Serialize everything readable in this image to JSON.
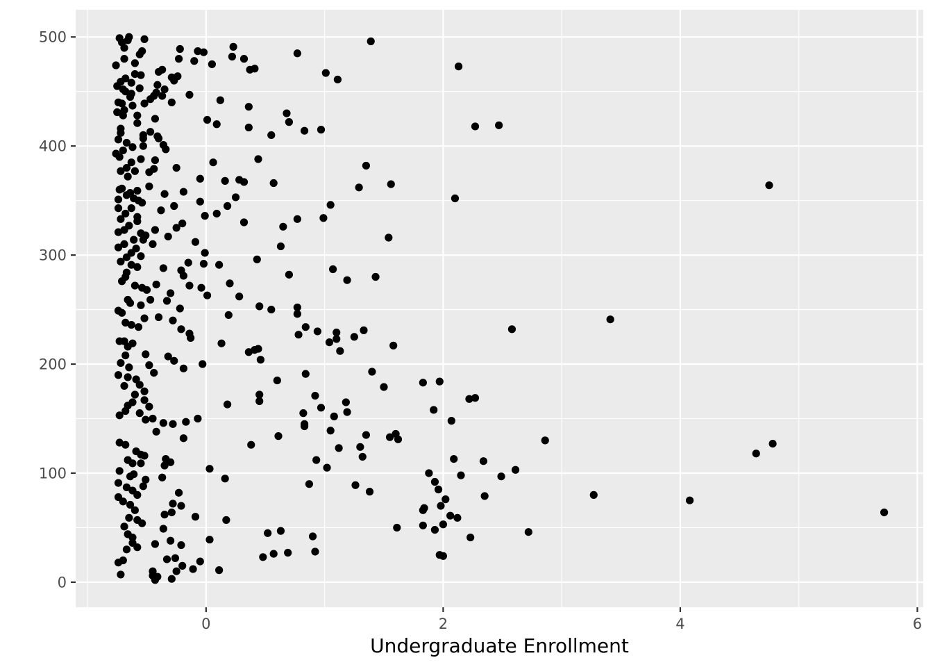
{
  "chart_data": {
    "type": "scatter",
    "title": "",
    "xlabel": "Undergraduate Enrollment",
    "ylabel": "",
    "xlim": [
      -1.1,
      6.05
    ],
    "ylim": [
      -23,
      525
    ],
    "x_ticks": [
      0,
      2,
      4,
      6
    ],
    "x_minor_ticks": [
      -1,
      1,
      3,
      5
    ],
    "y_ticks": [
      0,
      100,
      200,
      300,
      400,
      500
    ],
    "y_minor_ticks": [
      50,
      150,
      250,
      350,
      450
    ],
    "x_tick_labels": [
      "0",
      "2",
      "4",
      "6"
    ],
    "y_tick_labels": [
      "0",
      "100",
      "200",
      "300",
      "400",
      "500"
    ],
    "grid": true,
    "legend": "none",
    "colors": {
      "panel_background": "#EBEBEB",
      "grid_major": "#FFFFFF",
      "point": "#000000",
      "tick_label": "#4D4D4D"
    },
    "points": [
      [
        -0.76,
        474
      ],
      [
        -0.73,
        499
      ],
      [
        -0.71,
        495
      ],
      [
        -0.69,
        490
      ],
      [
        -0.66,
        497
      ],
      [
        -0.65,
        500
      ],
      [
        -0.52,
        498
      ],
      [
        -0.69,
        480
      ],
      [
        -0.6,
        476
      ],
      [
        -0.56,
        484
      ],
      [
        -0.54,
        487
      ],
      [
        -0.6,
        466
      ],
      [
        -0.55,
        465
      ],
      [
        -0.68,
        462
      ],
      [
        -0.72,
        459
      ],
      [
        -0.63,
        458
      ],
      [
        -0.75,
        455
      ],
      [
        -0.7,
        452
      ],
      [
        -0.68,
        450
      ],
      [
        -0.63,
        448
      ],
      [
        -0.56,
        453
      ],
      [
        -0.71,
        439
      ],
      [
        -0.74,
        440
      ],
      [
        -0.64,
        445
      ],
      [
        -0.62,
        437
      ],
      [
        -0.69,
        433
      ],
      [
        -0.75,
        431
      ],
      [
        -0.7,
        428
      ],
      [
        -0.58,
        428
      ],
      [
        -0.52,
        439
      ],
      [
        -0.47,
        443
      ],
      [
        -0.44,
        446
      ],
      [
        -0.42,
        449
      ],
      [
        -0.37,
        446
      ],
      [
        -0.35,
        452
      ],
      [
        -0.41,
        456
      ],
      [
        -0.29,
        463
      ],
      [
        -0.24,
        464
      ],
      [
        -0.27,
        460
      ],
      [
        -0.4,
        468
      ],
      [
        -0.37,
        470
      ],
      [
        -0.23,
        480
      ],
      [
        -0.22,
        489
      ],
      [
        -0.07,
        487
      ],
      [
        -0.02,
        486
      ],
      [
        -0.1,
        478
      ],
      [
        0.05,
        475
      ],
      [
        0.23,
        491
      ],
      [
        0.22,
        482
      ],
      [
        0.32,
        480
      ],
      [
        0.37,
        470
      ],
      [
        0.41,
        471
      ],
      [
        0.77,
        485
      ],
      [
        1.01,
        467
      ],
      [
        1.11,
        461
      ],
      [
        1.39,
        496
      ],
      [
        2.13,
        473
      ],
      [
        -0.29,
        440
      ],
      [
        -0.14,
        447
      ],
      [
        0.12,
        442
      ],
      [
        0.36,
        436
      ],
      [
        0.68,
        430
      ],
      [
        0.01,
        424
      ],
      [
        0.09,
        420
      ],
      [
        0.36,
        417
      ],
      [
        0.7,
        422
      ],
      [
        0.83,
        414
      ],
      [
        0.97,
        415
      ],
      [
        0.55,
        410
      ],
      [
        2.27,
        418
      ],
      [
        2.47,
        419
      ],
      [
        -0.74,
        406
      ],
      [
        -0.76,
        393
      ],
      [
        -0.73,
        390
      ],
      [
        -0.7,
        396
      ],
      [
        -0.67,
        403
      ],
      [
        -0.62,
        399
      ],
      [
        -0.72,
        412
      ],
      [
        -0.72,
        416
      ],
      [
        -0.58,
        421
      ],
      [
        -0.53,
        410
      ],
      [
        -0.53,
        407
      ],
      [
        -0.47,
        413
      ],
      [
        -0.43,
        425
      ],
      [
        -0.41,
        409
      ],
      [
        -0.4,
        407
      ],
      [
        -0.36,
        401
      ],
      [
        -0.34,
        397
      ],
      [
        -0.53,
        400
      ],
      [
        -0.55,
        388
      ],
      [
        -0.63,
        385
      ],
      [
        -0.67,
        380
      ],
      [
        -0.72,
        377
      ],
      [
        -0.66,
        372
      ],
      [
        -0.6,
        377
      ],
      [
        -0.48,
        376
      ],
      [
        -0.44,
        379
      ],
      [
        -0.43,
        387
      ],
      [
        -0.25,
        380
      ],
      [
        0.06,
        385
      ],
      [
        0.44,
        388
      ],
      [
        1.35,
        382
      ],
      [
        -0.73,
        360
      ],
      [
        -0.71,
        361
      ],
      [
        -0.67,
        355
      ],
      [
        -0.61,
        352
      ],
      [
        -0.57,
        350
      ],
      [
        -0.58,
        359
      ],
      [
        -0.64,
        357
      ],
      [
        -0.74,
        351
      ],
      [
        -0.54,
        348
      ],
      [
        -0.48,
        363
      ],
      [
        -0.35,
        356
      ],
      [
        -0.19,
        358
      ],
      [
        -0.05,
        370
      ],
      [
        0.16,
        368
      ],
      [
        0.28,
        369
      ],
      [
        0.32,
        367
      ],
      [
        0.57,
        366
      ],
      [
        1.56,
        365
      ],
      [
        1.29,
        362
      ],
      [
        2.1,
        352
      ],
      [
        4.75,
        364
      ],
      [
        -0.74,
        343
      ],
      [
        -0.68,
        338
      ],
      [
        -0.63,
        343
      ],
      [
        -0.72,
        333
      ],
      [
        -0.58,
        335
      ],
      [
        -0.65,
        327
      ],
      [
        -0.58,
        331
      ],
      [
        -0.69,
        323
      ],
      [
        -0.74,
        321
      ],
      [
        -0.61,
        314
      ],
      [
        -0.55,
        320
      ],
      [
        -0.51,
        318
      ],
      [
        -0.53,
        314
      ],
      [
        -0.45,
        310
      ],
      [
        -0.43,
        323
      ],
      [
        -0.38,
        341
      ],
      [
        -0.27,
        345
      ],
      [
        -0.05,
        349
      ],
      [
        -0.01,
        336
      ],
      [
        0.09,
        338
      ],
      [
        0.18,
        345
      ],
      [
        0.25,
        353
      ],
      [
        -0.32,
        317
      ],
      [
        -0.25,
        325
      ],
      [
        -0.2,
        329
      ],
      [
        -0.09,
        312
      ],
      [
        0.32,
        330
      ],
      [
        0.65,
        326
      ],
      [
        0.77,
        333
      ],
      [
        0.99,
        334
      ],
      [
        1.05,
        346
      ],
      [
        1.54,
        316
      ],
      [
        -0.74,
        307
      ],
      [
        -0.69,
        310
      ],
      [
        -0.72,
        294
      ],
      [
        -0.67,
        298
      ],
      [
        -0.63,
        302
      ],
      [
        -0.59,
        306
      ],
      [
        -0.55,
        299
      ],
      [
        -0.58,
        289
      ],
      [
        -0.63,
        291
      ],
      [
        -0.67,
        284
      ],
      [
        -0.71,
        276
      ],
      [
        -0.68,
        280
      ],
      [
        -0.6,
        272
      ],
      [
        -0.54,
        270
      ],
      [
        -0.5,
        268
      ],
      [
        -0.47,
        259
      ],
      [
        -0.42,
        273
      ],
      [
        -0.36,
        288
      ],
      [
        -0.3,
        265
      ],
      [
        -0.21,
        286
      ],
      [
        -0.19,
        281
      ],
      [
        -0.15,
        293
      ],
      [
        -0.01,
        302
      ],
      [
        -0.02,
        292
      ],
      [
        0.11,
        291
      ],
      [
        -0.14,
        272
      ],
      [
        -0.04,
        270
      ],
      [
        0.01,
        263
      ],
      [
        0.2,
        274
      ],
      [
        0.28,
        262
      ],
      [
        0.43,
        296
      ],
      [
        0.63,
        308
      ],
      [
        0.7,
        282
      ],
      [
        1.07,
        287
      ],
      [
        1.19,
        277
      ],
      [
        1.43,
        280
      ],
      [
        -0.74,
        249
      ],
      [
        -0.71,
        247
      ],
      [
        -0.66,
        259
      ],
      [
        -0.64,
        256
      ],
      [
        -0.68,
        238
      ],
      [
        -0.63,
        236
      ],
      [
        -0.57,
        234
      ],
      [
        -0.52,
        242
      ],
      [
        -0.55,
        254
      ],
      [
        -0.4,
        243
      ],
      [
        -0.33,
        258
      ],
      [
        -0.28,
        240
      ],
      [
        -0.22,
        251
      ],
      [
        -0.21,
        232
      ],
      [
        -0.14,
        228
      ],
      [
        -0.13,
        224
      ],
      [
        0.19,
        245
      ],
      [
        0.45,
        253
      ],
      [
        0.55,
        250
      ],
      [
        0.77,
        252
      ],
      [
        0.77,
        246
      ],
      [
        0.84,
        234
      ],
      [
        0.94,
        230
      ],
      [
        0.78,
        227
      ],
      [
        1.04,
        220
      ],
      [
        1.1,
        229
      ],
      [
        1.1,
        223
      ],
      [
        1.13,
        212
      ],
      [
        1.25,
        225
      ],
      [
        1.33,
        231
      ],
      [
        1.58,
        217
      ],
      [
        2.58,
        232
      ],
      [
        3.41,
        241
      ],
      [
        -0.73,
        221
      ],
      [
        -0.69,
        221
      ],
      [
        -0.66,
        216
      ],
      [
        -0.62,
        219
      ],
      [
        -0.68,
        208
      ],
      [
        -0.72,
        201
      ],
      [
        -0.65,
        197
      ],
      [
        -0.74,
        190
      ],
      [
        -0.69,
        180
      ],
      [
        -0.66,
        188
      ],
      [
        -0.59,
        186
      ],
      [
        -0.56,
        181
      ],
      [
        -0.52,
        175
      ],
      [
        -0.51,
        209
      ],
      [
        -0.48,
        199
      ],
      [
        -0.44,
        192
      ],
      [
        -0.32,
        207
      ],
      [
        -0.27,
        203
      ],
      [
        -0.19,
        196
      ],
      [
        -0.03,
        200
      ],
      [
        0.13,
        219
      ],
      [
        0.36,
        211
      ],
      [
        0.41,
        213
      ],
      [
        0.44,
        214
      ],
      [
        0.46,
        204
      ],
      [
        0.6,
        185
      ],
      [
        0.84,
        191
      ],
      [
        1.4,
        193
      ],
      [
        1.5,
        179
      ],
      [
        1.83,
        183
      ],
      [
        1.97,
        184
      ],
      [
        -0.73,
        153
      ],
      [
        -0.68,
        157
      ],
      [
        -0.66,
        162
      ],
      [
        -0.62,
        165
      ],
      [
        -0.6,
        172
      ],
      [
        -0.56,
        155
      ],
      [
        -0.52,
        167
      ],
      [
        -0.48,
        161
      ],
      [
        -0.51,
        149
      ],
      [
        -0.45,
        150
      ],
      [
        -0.42,
        138
      ],
      [
        -0.36,
        146
      ],
      [
        -0.28,
        145
      ],
      [
        -0.17,
        147
      ],
      [
        -0.07,
        150
      ],
      [
        0.18,
        163
      ],
      [
        0.45,
        166
      ],
      [
        0.45,
        172
      ],
      [
        0.82,
        155
      ],
      [
        0.83,
        143
      ],
      [
        0.83,
        145
      ],
      [
        0.92,
        171
      ],
      [
        0.97,
        160
      ],
      [
        1.05,
        139
      ],
      [
        1.08,
        152
      ],
      [
        1.18,
        165
      ],
      [
        1.19,
        156
      ],
      [
        1.35,
        135
      ],
      [
        1.55,
        133
      ],
      [
        1.6,
        136
      ],
      [
        1.62,
        131
      ],
      [
        1.92,
        158
      ],
      [
        2.07,
        148
      ],
      [
        2.22,
        168
      ],
      [
        2.27,
        169
      ],
      [
        -0.73,
        128
      ],
      [
        -0.68,
        126
      ],
      [
        -0.66,
        112
      ],
      [
        -0.62,
        109
      ],
      [
        -0.59,
        120
      ],
      [
        -0.55,
        117
      ],
      [
        -0.52,
        116
      ],
      [
        -0.55,
        109
      ],
      [
        -0.61,
        99
      ],
      [
        -0.64,
        97
      ],
      [
        -0.73,
        102
      ],
      [
        -0.74,
        91
      ],
      [
        -0.67,
        87
      ],
      [
        -0.62,
        84
      ],
      [
        -0.58,
        80
      ],
      [
        -0.53,
        88
      ],
      [
        -0.51,
        94
      ],
      [
        -0.37,
        96
      ],
      [
        -0.35,
        107
      ],
      [
        -0.3,
        110
      ],
      [
        -0.34,
        113
      ],
      [
        -0.19,
        132
      ],
      [
        0.03,
        104
      ],
      [
        0.16,
        95
      ],
      [
        0.38,
        126
      ],
      [
        0.61,
        134
      ],
      [
        0.87,
        90
      ],
      [
        0.93,
        112
      ],
      [
        1.02,
        105
      ],
      [
        1.12,
        123
      ],
      [
        1.26,
        89
      ],
      [
        1.3,
        124
      ],
      [
        1.32,
        115
      ],
      [
        1.38,
        83
      ],
      [
        1.88,
        100
      ],
      [
        1.93,
        92
      ],
      [
        1.96,
        85
      ],
      [
        2.02,
        76
      ],
      [
        2.09,
        113
      ],
      [
        2.15,
        98
      ],
      [
        2.34,
        111
      ],
      [
        2.35,
        79
      ],
      [
        2.49,
        97
      ],
      [
        2.61,
        103
      ],
      [
        2.86,
        130
      ],
      [
        3.27,
        80
      ],
      [
        4.08,
        75
      ],
      [
        4.64,
        118
      ],
      [
        4.78,
        127
      ],
      [
        5.72,
        64
      ],
      [
        -0.74,
        78
      ],
      [
        -0.7,
        74
      ],
      [
        -0.64,
        71
      ],
      [
        -0.6,
        66
      ],
      [
        -0.65,
        59
      ],
      [
        -0.58,
        57
      ],
      [
        -0.54,
        54
      ],
      [
        -0.66,
        44
      ],
      [
        -0.62,
        41
      ],
      [
        -0.69,
        51
      ],
      [
        -0.62,
        36
      ],
      [
        -0.58,
        32
      ],
      [
        -0.67,
        30
      ],
      [
        -0.7,
        20
      ],
      [
        -0.74,
        18
      ],
      [
        -0.72,
        7
      ],
      [
        -0.45,
        6
      ],
      [
        -0.43,
        2
      ],
      [
        -0.41,
        5
      ],
      [
        -0.45,
        10
      ],
      [
        -0.29,
        3
      ],
      [
        -0.25,
        10
      ],
      [
        -0.2,
        15
      ],
      [
        -0.11,
        12
      ],
      [
        -0.05,
        19
      ],
      [
        -0.33,
        21
      ],
      [
        -0.26,
        22
      ],
      [
        -0.21,
        34
      ],
      [
        -0.3,
        38
      ],
      [
        -0.36,
        49
      ],
      [
        -0.35,
        62
      ],
      [
        -0.29,
        64
      ],
      [
        -0.28,
        72
      ],
      [
        -0.23,
        82
      ],
      [
        -0.21,
        70
      ],
      [
        -0.09,
        60
      ],
      [
        0.03,
        39
      ],
      [
        0.11,
        11
      ],
      [
        0.17,
        57
      ],
      [
        0.48,
        23
      ],
      [
        0.52,
        45
      ],
      [
        0.57,
        26
      ],
      [
        0.63,
        47
      ],
      [
        0.69,
        27
      ],
      [
        0.9,
        42
      ],
      [
        0.92,
        28
      ],
      [
        1.61,
        50
      ],
      [
        1.83,
        66
      ],
      [
        1.84,
        68
      ],
      [
        1.83,
        52
      ],
      [
        1.93,
        48
      ],
      [
        1.97,
        25
      ],
      [
        2.0,
        24
      ],
      [
        2.0,
        53
      ],
      [
        2.06,
        61
      ],
      [
        2.12,
        59
      ],
      [
        2.23,
        41
      ],
      [
        2.72,
        46
      ],
      [
        1.98,
        70
      ],
      [
        -0.43,
        35
      ]
    ]
  }
}
